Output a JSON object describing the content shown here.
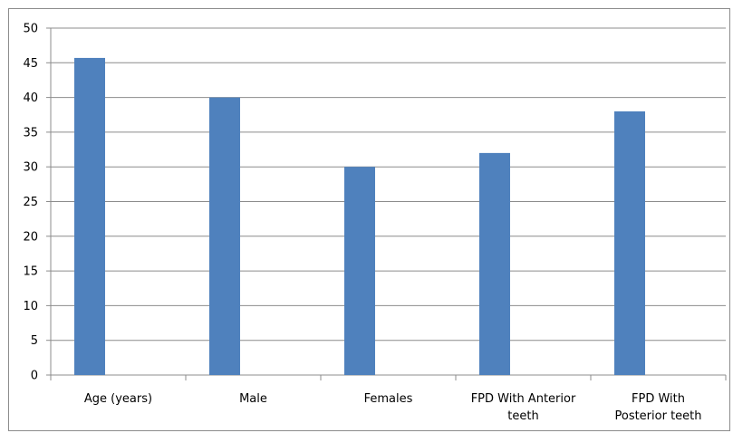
{
  "chart_data": {
    "type": "bar",
    "categories": [
      [
        "Age (years)"
      ],
      [
        "Male"
      ],
      [
        "Females"
      ],
      [
        "FPD With Anterior",
        "teeth"
      ],
      [
        "FPD With",
        "Posterior teeth"
      ]
    ],
    "values": [
      45.7,
      40,
      30,
      32,
      38
    ],
    "yticks": [
      "0",
      "5",
      "10",
      "15",
      "20",
      "25",
      "30",
      "35",
      "40",
      "45",
      "50"
    ],
    "ylim": [
      0,
      50
    ],
    "grid": true,
    "bar_color": "#4f81bd",
    "grid_color": "#8c8c8c",
    "title": "",
    "xlabel": "",
    "ylabel": ""
  }
}
